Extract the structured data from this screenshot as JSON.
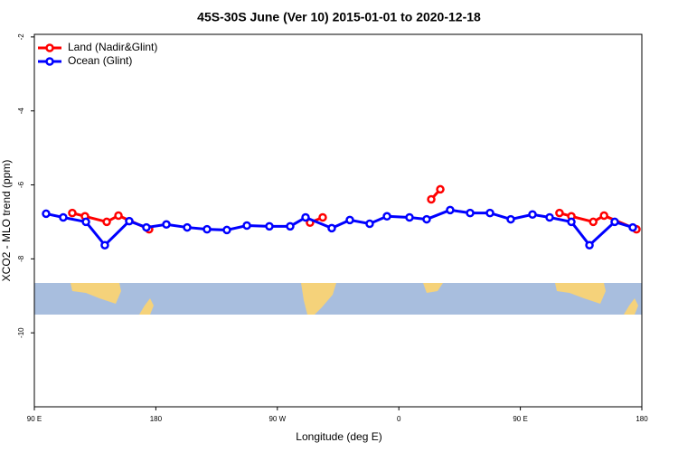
{
  "chart_data": {
    "type": "line",
    "title": "45S-30S June (Ver 10)   2015-01-01 to 2020-12-18",
    "x_label": "Longitude (deg E)",
    "y_label": "XCO2 - MLO trend (ppm)",
    "xlim": [
      90,
      540
    ],
    "xticks": [
      {
        "value": 90,
        "label": "90 E"
      },
      180,
      {
        "value": 270,
        "label": "90 W"
      },
      {
        "value": 360,
        "label": "0"
      },
      {
        "value": 450,
        "label": "90 E"
      },
      {
        "value": 540,
        "label": "180"
      }
    ],
    "ylim": [
      -12,
      -1.93
    ],
    "yticks": [
      -2,
      -4,
      -6,
      -8,
      -10
    ],
    "legend": "top-left",
    "series": [
      {
        "name": "Land (Nadir&Glint)",
        "color": "#ff0000",
        "x": [
          118.1,
          127.5,
          143.6,
          152.3,
          175,
          null,
          294.2,
          303.6,
          null,
          384,
          390.7,
          null,
          479,
          487.8,
          504,
          512,
          536
        ],
        "values": [
          -6.76,
          -6.85,
          -7.0,
          -6.83,
          -7.2,
          null,
          -7.02,
          -6.88,
          null,
          -6.39,
          -6.12,
          null,
          -6.76,
          -6.85,
          -7.0,
          -6.83,
          -7.2
        ]
      },
      {
        "name": "Ocean (Glint)",
        "color": "#0000ff",
        "x": [
          98.7,
          111.4,
          128.2,
          142.2,
          160.3,
          173,
          187.8,
          203.2,
          217.9,
          232.6,
          247.4,
          264.1,
          279.5,
          290.9,
          310.3,
          323.7,
          338.4,
          351.2,
          367.9,
          380.6,
          398,
          412.8,
          427.5,
          442.9,
          459,
          471.7,
          487.8,
          501.2,
          519.9,
          533.3
        ],
        "values": [
          -6.78,
          -6.88,
          -7.0,
          -7.63,
          -6.98,
          -7.15,
          -7.07,
          -7.15,
          -7.2,
          -7.22,
          -7.1,
          -7.12,
          -7.12,
          -6.88,
          -7.17,
          -6.95,
          -7.05,
          -6.85,
          -6.88,
          -6.93,
          -6.68,
          -6.76,
          -6.76,
          -6.93,
          -6.8,
          -6.88,
          -7.0,
          -7.63,
          -7.0,
          -7.15
        ]
      }
    ]
  }
}
